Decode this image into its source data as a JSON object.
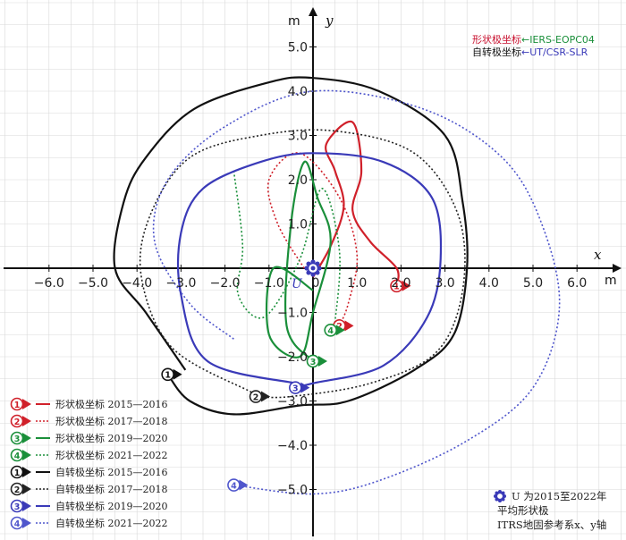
{
  "chart_data": {
    "type": "line",
    "xlabel": "x",
    "ylabel": "y",
    "x_unit": "m",
    "y_unit": "m",
    "xlim": [
      -7.0,
      7.0
    ],
    "ylim": [
      -6.0,
      6.0
    ],
    "x_ticks": [
      -6.0,
      -5.0,
      -4.0,
      -3.0,
      -2.0,
      -1.0,
      0,
      1.0,
      2.0,
      3.0,
      4.0,
      5.0,
      6.0
    ],
    "x_tick_labels": [
      "−6.0",
      "−5.0",
      "−4.0",
      "−3.0",
      "−2.0",
      "−1.0",
      "0",
      "1.0",
      "2.0",
      "3.0",
      "4.0",
      "5.0",
      "6.0"
    ],
    "y_ticks": [
      5.0,
      4.0,
      3.0,
      2.0,
      1.0,
      -1.0,
      -2.0,
      -3.0,
      -4.0,
      -5.0
    ],
    "y_tick_labels": [
      "5.0",
      "4.0",
      "3.0",
      "2.0",
      "1.0",
      "−1.0",
      "−2.0",
      "−3.0",
      "−4.0",
      "−5.0"
    ],
    "grid": true,
    "legend_position": "bottom-left",
    "sources": [
      {
        "label": "形状极坐标←IERS-EOPC04",
        "color": "#c8102e",
        "secondary_color": "#1a8f3a"
      },
      {
        "label": "自转极坐标←UT/CSR-SLR",
        "color": "#111111",
        "secondary_color": "#3a3ab8"
      }
    ],
    "mean_pole": {
      "label": "U",
      "x": 0.0,
      "y": 0.0
    },
    "note": [
      "U 为2015至2022年",
      "平均形状极",
      "ITRS地固参考系x、y轴"
    ],
    "series": [
      {
        "name": "形状极坐标 2015—2016",
        "marker": "1",
        "color": "#d0202a",
        "dash": "solid",
        "points": [
          [
            0.0,
            -0.2
          ],
          [
            0.4,
            0.5
          ],
          [
            0.7,
            1.4
          ],
          [
            0.5,
            2.2
          ],
          [
            0.3,
            2.8
          ],
          [
            0.9,
            3.3
          ],
          [
            1.1,
            2.2
          ],
          [
            0.9,
            1.3
          ],
          [
            1.3,
            0.6
          ],
          [
            1.9,
            0.0
          ],
          [
            1.9,
            -0.4
          ]
        ]
      },
      {
        "name": "形状极坐标 2017—2018",
        "marker": "2",
        "color": "#d0202a",
        "dash": "dotted",
        "points": [
          [
            -0.2,
            0.0
          ],
          [
            -0.8,
            1.0
          ],
          [
            -1.0,
            2.0
          ],
          [
            -0.3,
            2.6
          ],
          [
            0.6,
            1.6
          ],
          [
            1.0,
            0.3
          ],
          [
            0.8,
            -0.8
          ],
          [
            0.6,
            -1.3
          ]
        ]
      },
      {
        "name": "形状极坐标 2019—2020",
        "marker": "3",
        "color": "#1a8f3a",
        "dash": "solid",
        "points": [
          [
            0.0,
            -0.5
          ],
          [
            -0.9,
            0.0
          ],
          [
            -1.0,
            -1.5
          ],
          [
            -0.3,
            -2.0
          ],
          [
            0.0,
            -1.0
          ],
          [
            0.4,
            0.6
          ],
          [
            0.1,
            1.6
          ],
          [
            -0.2,
            2.4
          ],
          [
            -0.5,
            1.0
          ],
          [
            -0.6,
            -1.3
          ],
          [
            0.0,
            -2.1
          ]
        ]
      },
      {
        "name": "形状极坐标 2021—2022",
        "marker": "4",
        "color": "#1a8f3a",
        "dash": "dotted",
        "points": [
          [
            -1.8,
            2.2
          ],
          [
            -1.6,
            0.5
          ],
          [
            -1.7,
            -0.6
          ],
          [
            -1.1,
            -1.1
          ],
          [
            -0.3,
            0.2
          ],
          [
            0.2,
            1.8
          ],
          [
            0.6,
            0.4
          ],
          [
            0.5,
            -1.2
          ],
          [
            0.4,
            -1.4
          ]
        ]
      },
      {
        "name": "自转极坐标 2015—2016",
        "marker": "1",
        "color": "#111111",
        "dash": "solid",
        "points": [
          [
            -2.9,
            -2.3
          ],
          [
            -3.8,
            -1.0
          ],
          [
            -4.5,
            0.0
          ],
          [
            -4.3,
            1.5
          ],
          [
            -3.8,
            2.5
          ],
          [
            -2.7,
            3.6
          ],
          [
            -1.0,
            4.2
          ],
          [
            0.0,
            4.3
          ],
          [
            1.5,
            4.0
          ],
          [
            3.0,
            3.0
          ],
          [
            3.4,
            1.5
          ],
          [
            3.5,
            0.0
          ],
          [
            3.2,
            -1.5
          ],
          [
            2.3,
            -2.3
          ],
          [
            0.8,
            -3.0
          ],
          [
            -0.3,
            -3.1
          ],
          [
            -1.8,
            -3.3
          ],
          [
            -2.8,
            -3.0
          ],
          [
            -3.3,
            -2.4
          ]
        ]
      },
      {
        "name": "自转极坐标 2017—2018",
        "marker": "2",
        "color": "#222222",
        "dash": "dotted",
        "points": [
          [
            -1.4,
            -2.8
          ],
          [
            -3.2,
            -1.8
          ],
          [
            -3.9,
            -0.2
          ],
          [
            -3.7,
            1.2
          ],
          [
            -2.8,
            2.5
          ],
          [
            -1.2,
            3.0
          ],
          [
            0.5,
            3.1
          ],
          [
            2.3,
            2.6
          ],
          [
            3.3,
            1.2
          ],
          [
            3.4,
            -0.5
          ],
          [
            2.8,
            -1.9
          ],
          [
            1.3,
            -2.6
          ],
          [
            -0.5,
            -2.9
          ],
          [
            -1.3,
            -2.9
          ]
        ]
      },
      {
        "name": "自转极坐标 2019—2020",
        "marker": "3",
        "color": "#3a3ab8",
        "dash": "solid",
        "points": [
          [
            -0.4,
            -2.6
          ],
          [
            -2.4,
            -2.1
          ],
          [
            -3.0,
            -0.6
          ],
          [
            -3.0,
            0.8
          ],
          [
            -2.5,
            1.8
          ],
          [
            -1.2,
            2.4
          ],
          [
            0.0,
            2.6
          ],
          [
            1.6,
            2.4
          ],
          [
            2.7,
            1.6
          ],
          [
            2.9,
            0.2
          ],
          [
            2.6,
            -1.1
          ],
          [
            1.6,
            -2.2
          ],
          [
            0.0,
            -2.6
          ],
          [
            -0.4,
            -2.7
          ]
        ]
      },
      {
        "name": "自转极坐标 2021—2022",
        "marker": "4",
        "color": "#4f56cc",
        "dash": "dotted",
        "points": [
          [
            -1.8,
            -1.6
          ],
          [
            -2.8,
            -0.8
          ],
          [
            -3.6,
            0.6
          ],
          [
            -3.3,
            2.0
          ],
          [
            -2.0,
            3.2
          ],
          [
            0.0,
            4.0
          ],
          [
            2.5,
            3.6
          ],
          [
            4.3,
            2.5
          ],
          [
            5.2,
            1.0
          ],
          [
            5.6,
            -0.9
          ],
          [
            5.0,
            -2.7
          ],
          [
            3.5,
            -3.9
          ],
          [
            1.5,
            -4.8
          ],
          [
            0.0,
            -5.1
          ],
          [
            -1.8,
            -4.9
          ]
        ]
      }
    ]
  }
}
